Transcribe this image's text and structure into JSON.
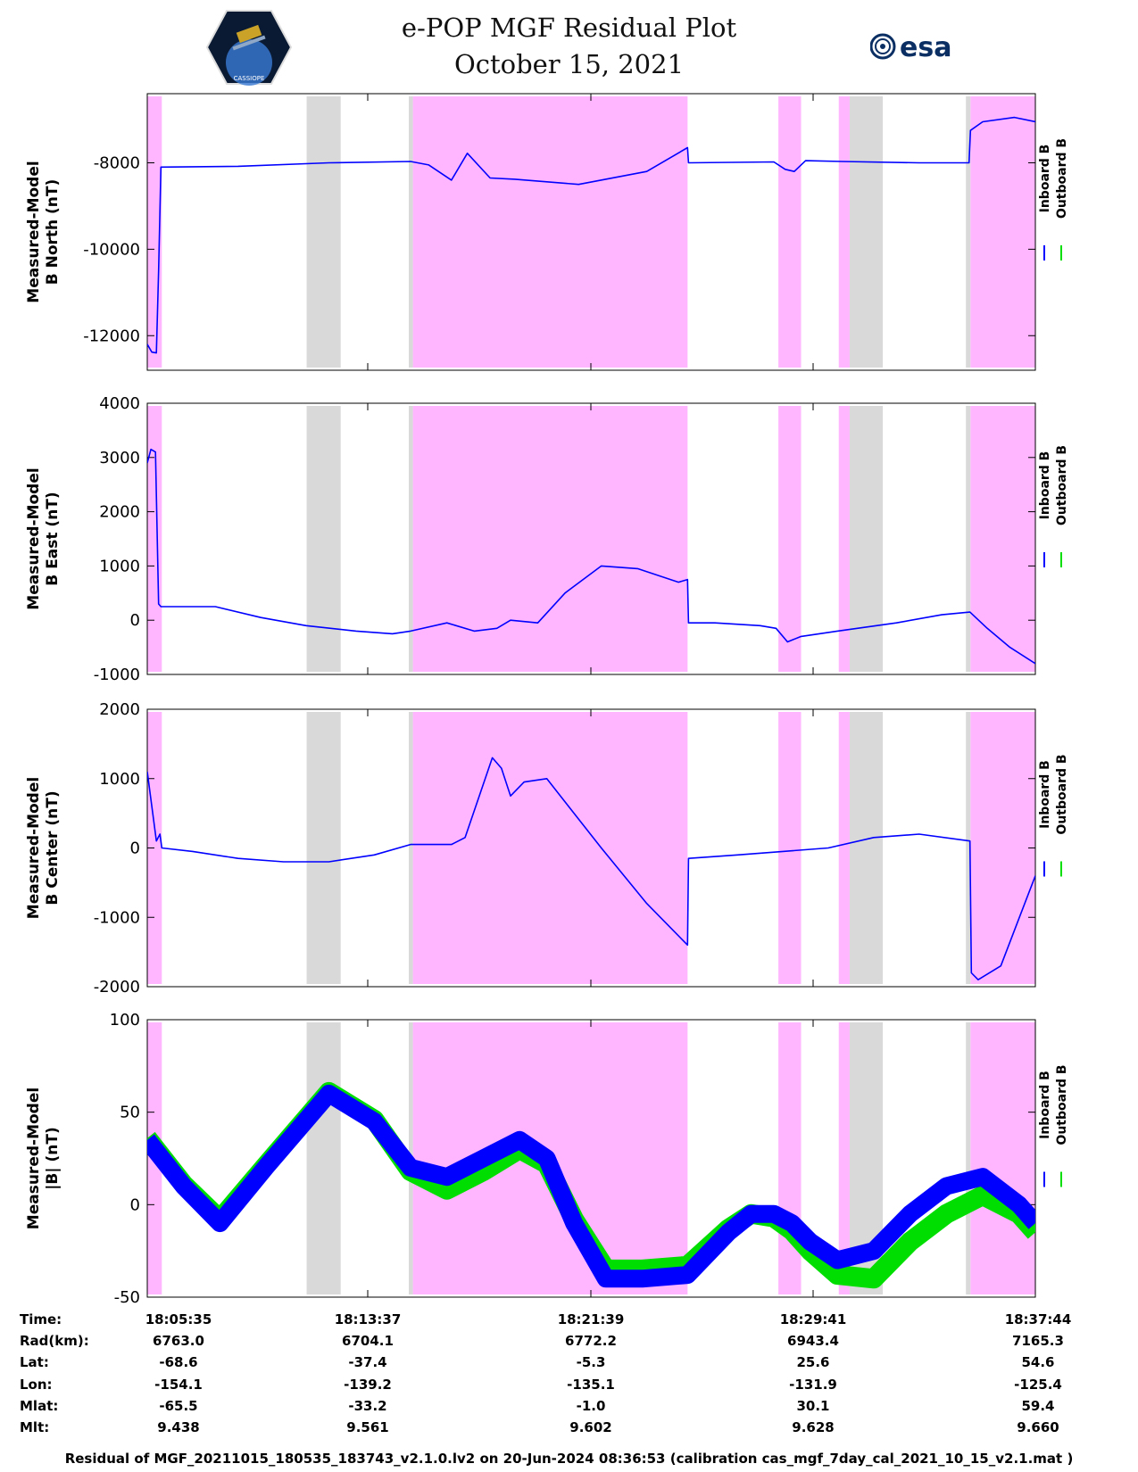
{
  "header": {
    "title_line1": "e-POP MGF Residual Plot",
    "title_line2": "October 15, 2021",
    "logo_left_text": "CASSIOPE",
    "logo_right_text": "esa"
  },
  "colors": {
    "inboard": "#0000ff",
    "outboard": "#00dd00",
    "pink": "#ffb6ff",
    "gray": "#d9d9d9"
  },
  "chart_data": {
    "type": "line",
    "x_range_seconds": [
      0,
      1956
    ],
    "shaded_regions": {
      "pink": [
        [
          0,
          32
        ],
        [
          585,
          1190
        ],
        [
          1390,
          1440
        ],
        [
          1523,
          1547
        ],
        [
          1813,
          1956
        ]
      ],
      "gray": [
        [
          351,
          426
        ],
        [
          576,
          585
        ],
        [
          1547,
          1620
        ],
        [
          1803,
          1813
        ]
      ]
    },
    "legend": [
      "Inboard B",
      "Outboard B"
    ],
    "panels": [
      {
        "name": "b-north",
        "ylabel": [
          "Measured-Model",
          "B North (nT)"
        ],
        "ylim": [
          -12800,
          -6400
        ],
        "yticks": [
          -8000,
          -10000,
          -12000
        ],
        "series": [
          {
            "name": "Inboard B",
            "x": [
              0,
              10,
              20,
              25,
              30,
              200,
              400,
              580,
              620,
              670,
              705,
              755,
              810,
              950,
              1100,
              1190,
              1192,
              1380,
              1405,
              1425,
              1450,
              1530,
              1700,
              1810,
              1813,
              1840,
              1910,
              1956
            ],
            "y": [
              -12200,
              -12380,
              -12400,
              -10500,
              -8100,
              -8080,
              -8000,
              -7970,
              -8050,
              -8400,
              -7780,
              -8350,
              -8380,
              -8500,
              -8200,
              -7650,
              -8000,
              -7980,
              -8150,
              -8200,
              -7950,
              -7970,
              -8000,
              -8000,
              -7250,
              -7050,
              -6950,
              -7050
            ]
          }
        ]
      },
      {
        "name": "b-east",
        "ylabel": [
          "Measured-Model",
          "B East (nT)"
        ],
        "ylim": [
          -1000,
          4000
        ],
        "yticks": [
          4000,
          3000,
          2000,
          1000,
          0,
          -1000
        ],
        "series": [
          {
            "name": "Inboard B",
            "x": [
              0,
              8,
              18,
              25,
              30,
              150,
              250,
              350,
              460,
              540,
              580,
              660,
              720,
              770,
              800,
              860,
              920,
              1000,
              1080,
              1170,
              1190,
              1192,
              1250,
              1350,
              1385,
              1410,
              1440,
              1520,
              1650,
              1750,
              1812,
              1850,
              1900,
              1956
            ],
            "y": [
              2900,
              3150,
              3100,
              300,
              250,
              250,
              50,
              -100,
              -200,
              -250,
              -200,
              -50,
              -200,
              -150,
              0,
              -50,
              500,
              1000,
              950,
              700,
              750,
              -50,
              -50,
              -100,
              -150,
              -400,
              -300,
              -200,
              -50,
              100,
              150,
              -150,
              -500,
              -800
            ]
          }
        ]
      },
      {
        "name": "b-center",
        "ylabel": [
          "Measured-Model",
          "B Center (nT)"
        ],
        "ylim": [
          -2000,
          2000
        ],
        "yticks": [
          2000,
          1000,
          0,
          -1000,
          -2000
        ],
        "series": [
          {
            "name": "Inboard B",
            "x": [
              0,
              20,
              28,
              32,
              100,
              200,
              300,
              400,
              500,
              580,
              670,
              700,
              760,
              780,
              800,
              830,
              880,
              1000,
              1100,
              1190,
              1192,
              1300,
              1400,
              1500,
              1600,
              1700,
              1812,
              1815,
              1830,
              1880,
              1956
            ],
            "y": [
              1100,
              100,
              200,
              0,
              -50,
              -150,
              -200,
              -200,
              -100,
              50,
              50,
              150,
              1300,
              1150,
              750,
              950,
              1000,
              0,
              -800,
              -1400,
              -150,
              -100,
              -50,
              0,
              150,
              200,
              100,
              -1800,
              -1900,
              -1700,
              -400
            ]
          }
        ]
      },
      {
        "name": "b-magnitude",
        "ylabel": [
          "Measured-Model",
          "|B| (nT)"
        ],
        "ylim": [
          -50,
          100
        ],
        "yticks": [
          100,
          50,
          0,
          -50
        ],
        "series": [
          {
            "name": "Inboard B",
            "x": [
              0,
              80,
              160,
              260,
              400,
              500,
              580,
              660,
              740,
              820,
              880,
              940,
              1010,
              1090,
              1190,
              1280,
              1330,
              1380,
              1420,
              1460,
              1520,
              1600,
              1680,
              1760,
              1840,
              1920,
              1956
            ],
            "y": [
              35,
              10,
              -10,
              20,
              60,
              45,
              20,
              15,
              25,
              35,
              25,
              -10,
              -40,
              -40,
              -38,
              -15,
              -5,
              -5,
              -10,
              -20,
              -30,
              -25,
              -5,
              10,
              15,
              0,
              -10
            ]
          },
          {
            "name": "Outboard B",
            "x": [
              0,
              80,
              160,
              260,
              400,
              500,
              580,
              660,
              740,
              820,
              880,
              940,
              1010,
              1090,
              1190,
              1280,
              1330,
              1380,
              1420,
              1460,
              1520,
              1600,
              1680,
              1760,
              1840,
              1920,
              1956
            ],
            "y": [
              36,
              11,
              -8,
              21,
              61,
              46,
              18,
              8,
              18,
              30,
              22,
              -8,
              -35,
              -35,
              -33,
              -13,
              -5,
              -7,
              -14,
              -25,
              -38,
              -40,
              -20,
              -5,
              5,
              -5,
              -15
            ]
          }
        ]
      }
    ],
    "table": {
      "labels": [
        "Time:",
        "Rad(km):",
        "Lat:",
        "Lon:",
        "Mlat:",
        "Mlt:"
      ],
      "columns": [
        {
          "time": "18:05:35",
          "rad": "6763.0",
          "lat": "-68.6",
          "lon": "-154.1",
          "mlat": "-65.5",
          "mlt": "9.438"
        },
        {
          "time": "18:13:37",
          "rad": "6704.1",
          "lat": "-37.4",
          "lon": "-139.2",
          "mlat": "-33.2",
          "mlt": "9.561"
        },
        {
          "time": "18:21:39",
          "rad": "6772.2",
          "lat": "-5.3",
          "lon": "-135.1",
          "mlat": "-1.0",
          "mlt": "9.602"
        },
        {
          "time": "18:29:41",
          "rad": "6943.4",
          "lat": "25.6",
          "lon": "-131.9",
          "mlat": "30.1",
          "mlt": "9.628"
        },
        {
          "time": "18:37:44",
          "rad": "7165.3",
          "lat": "54.6",
          "lon": "-125.4",
          "mlat": "59.4",
          "mlt": "9.660"
        }
      ]
    }
  },
  "footer": "Residual of MGF_20211015_180535_183743_v2.1.0.lv2 on 20-Jun-2024 08:36:53 (calibration cas_mgf_7day_cal_2021_10_15_v2.1.mat )"
}
